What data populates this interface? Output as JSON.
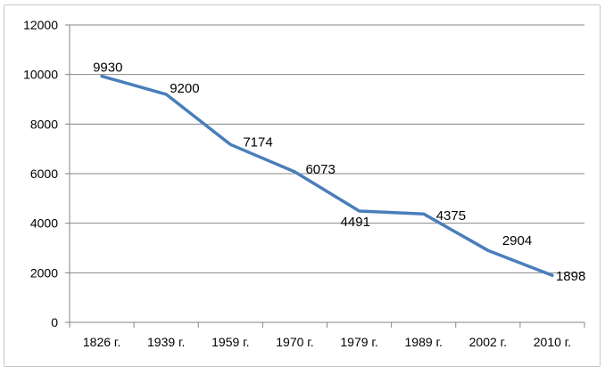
{
  "chart_data": {
    "type": "line",
    "title": "",
    "xlabel": "",
    "ylabel": "",
    "categories": [
      "1826 г.",
      "1939 г.",
      "1959 г.",
      "1970 г.",
      "1979 г.",
      "1989 г.",
      "2002 г.",
      "2010 г."
    ],
    "series": [
      {
        "values": [
          9930,
          9200,
          7174,
          6073,
          4491,
          4375,
          2904,
          1898
        ],
        "color": "#4a7ebb"
      }
    ],
    "ylim": [
      0,
      12000
    ],
    "yticks": [
      0,
      2000,
      4000,
      6000,
      8000,
      10000,
      12000
    ],
    "grid": true,
    "legend": "none"
  }
}
